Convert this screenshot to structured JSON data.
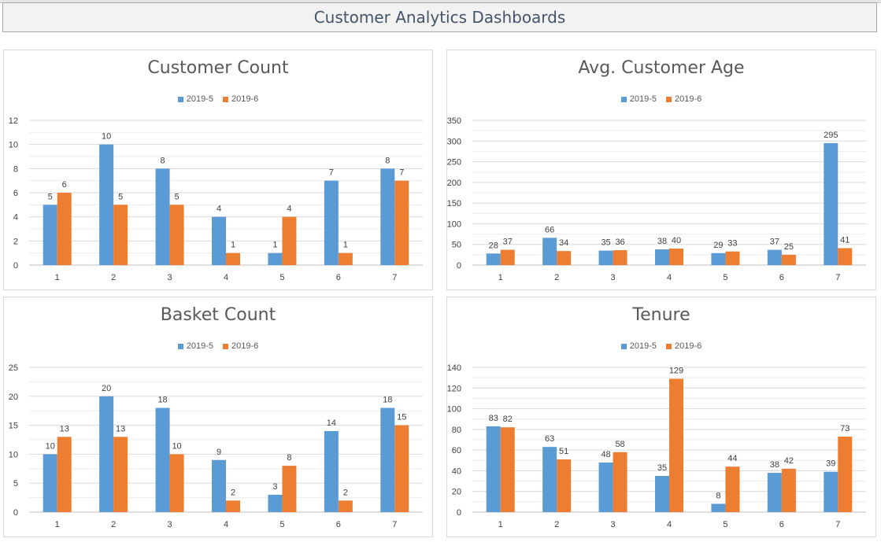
{
  "header": {
    "title": "Customer Analytics Dashboards"
  },
  "colors": {
    "series_a": "#5b9bd5",
    "series_b": "#ed7d31"
  },
  "chart_data": [
    {
      "type": "bar",
      "title": "Customer Count",
      "categories": [
        "1",
        "2",
        "3",
        "4",
        "5",
        "6",
        "7"
      ],
      "series": [
        {
          "name": "2019-5",
          "values": [
            5,
            10,
            8,
            4,
            1,
            7,
            8
          ]
        },
        {
          "name": "2019-6",
          "values": [
            6,
            5,
            5,
            1,
            4,
            1,
            7
          ]
        }
      ],
      "ylim": [
        0,
        12
      ],
      "yticks": [
        0,
        2,
        4,
        6,
        8,
        10,
        12
      ],
      "legend": "top-center",
      "grid": true
    },
    {
      "type": "bar",
      "title": "Avg. Customer Age",
      "categories": [
        "1",
        "2",
        "3",
        "4",
        "5",
        "6",
        "7"
      ],
      "series": [
        {
          "name": "2019-5",
          "values": [
            28,
            66,
            35,
            38,
            29,
            37,
            295
          ]
        },
        {
          "name": "2019-6",
          "values": [
            37,
            34,
            36,
            40,
            33,
            25,
            41
          ]
        }
      ],
      "ylim": [
        0,
        350
      ],
      "yticks": [
        0,
        50,
        100,
        150,
        200,
        250,
        300,
        350
      ],
      "legend": "top-center",
      "grid": true
    },
    {
      "type": "bar",
      "title": "Basket Count",
      "categories": [
        "1",
        "2",
        "3",
        "4",
        "5",
        "6",
        "7"
      ],
      "series": [
        {
          "name": "2019-5",
          "values": [
            10,
            20,
            18,
            9,
            3,
            14,
            18
          ]
        },
        {
          "name": "2019-6",
          "values": [
            13,
            13,
            10,
            2,
            8,
            2,
            15
          ]
        }
      ],
      "ylim": [
        0,
        25
      ],
      "yticks": [
        0,
        5,
        10,
        15,
        20,
        25
      ],
      "legend": "top-center",
      "grid": true
    },
    {
      "type": "bar",
      "title": "Tenure",
      "categories": [
        "1",
        "2",
        "3",
        "4",
        "5",
        "6",
        "7"
      ],
      "series": [
        {
          "name": "2019-5",
          "values": [
            83,
            63,
            48,
            35,
            8,
            38,
            39
          ]
        },
        {
          "name": "2019-6",
          "values": [
            82,
            51,
            58,
            129,
            44,
            42,
            73
          ]
        }
      ],
      "ylim": [
        0,
        140
      ],
      "yticks": [
        0,
        20,
        40,
        60,
        80,
        100,
        120,
        140
      ],
      "legend": "top-center",
      "grid": true
    }
  ]
}
